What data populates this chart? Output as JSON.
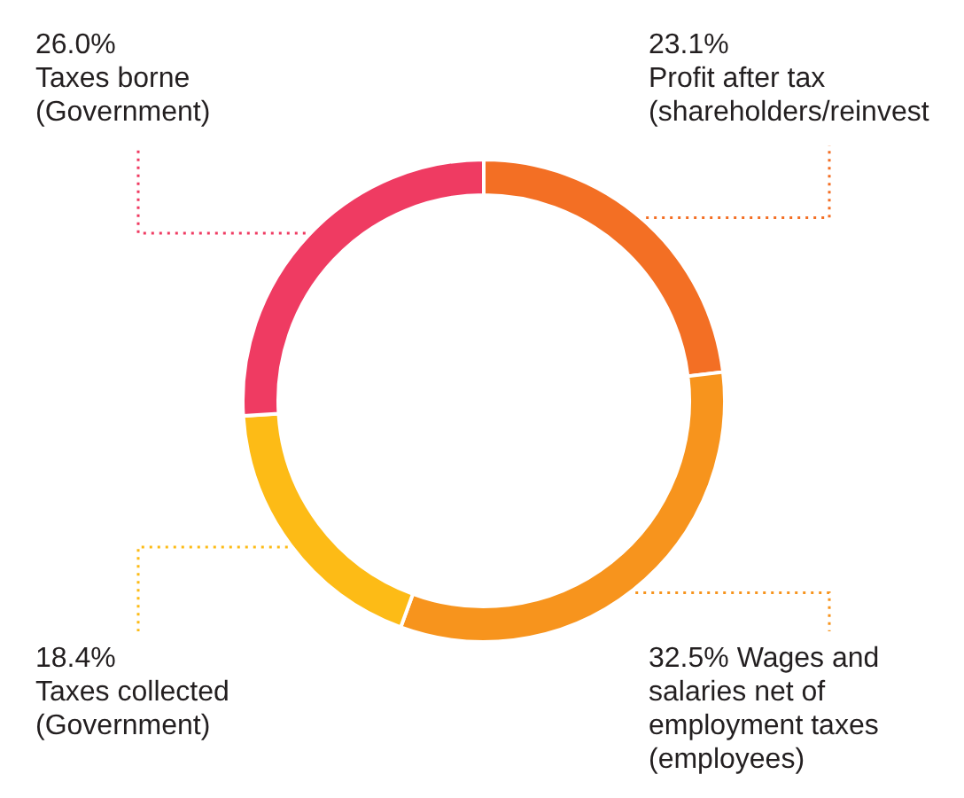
{
  "chart_data": {
    "type": "donut",
    "categories": [
      "Profit after tax (shareholders/reinvest",
      "Wages and salaries net of employment taxes (employees)",
      "Taxes collected (Government)",
      "Taxes borne (Government)"
    ],
    "values": [
      23.1,
      32.5,
      18.4,
      26.0
    ],
    "colors": [
      "#f36f24",
      "#f7941d",
      "#fdbb16",
      "#ef3b62"
    ],
    "value_labels": [
      "23.1%",
      "32.5%",
      "18.4%",
      "26.0%"
    ],
    "legend": false
  }
}
